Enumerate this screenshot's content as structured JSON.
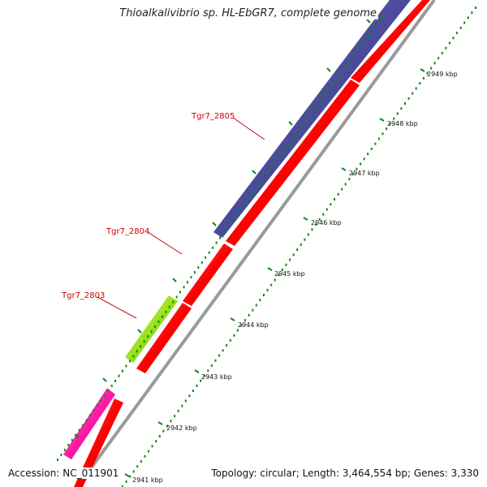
{
  "title": "Thioalkalivibrio sp. HL-EbGR7, complete genome",
  "footer": {
    "accession": "Accession: NC_011901",
    "summary": "Topology: circular; Length: 3,464,554 bp; Genes: 3,330"
  },
  "colors": {
    "background": "#ffffff",
    "backbone": "#9a9a9a",
    "tick": "#118811",
    "gene_blue": "#4a4a9a",
    "gene_red": "#ff0000",
    "gene_green": "#9be21e",
    "gene_magenta": "#ff1aa8",
    "label": "#cc0000"
  },
  "scale": {
    "unit": "kbp",
    "labels": [
      "2941 kbp",
      "2942 kbp",
      "2943 kbp",
      "2944 kbp",
      "2945 kbp",
      "2946 kbp",
      "2947 kbp",
      "2948 kbp",
      "2949 kbp"
    ]
  },
  "gene_labels": [
    "Tgr7_2803",
    "Tgr7_2804",
    "Tgr7_2805"
  ]
}
